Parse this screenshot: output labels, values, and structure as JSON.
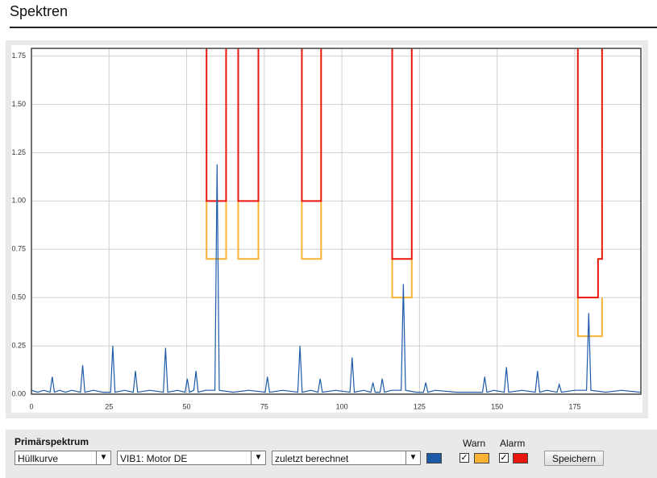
{
  "header": {
    "title": "Spektren"
  },
  "chart_data": {
    "type": "line",
    "xlim": [
      0,
      196.3
    ],
    "ylim": [
      0,
      1.79
    ],
    "xticks": [
      0,
      25,
      50,
      75,
      100,
      125,
      150,
      175
    ],
    "yticks": [
      {
        "value": 0,
        "label": "0.00"
      },
      {
        "value": 0.25,
        "label": "0.25"
      },
      {
        "value": 0.5,
        "label": "0.50"
      },
      {
        "value": 0.75,
        "label": "0.75"
      },
      {
        "value": 1,
        "label": "1.00"
      },
      {
        "value": 1.25,
        "label": "1.25"
      },
      {
        "value": 1.5,
        "label": "1.50"
      },
      {
        "value": 1.75,
        "label": "1.75"
      }
    ],
    "grid": true,
    "series": [
      {
        "color": "#1f5aa8",
        "x": [
          0,
          2,
          4,
          6,
          6.7,
          7.4,
          9,
          11,
          13,
          15.8,
          16.5,
          17.2,
          20,
          23,
          25.5,
          26.2,
          26.9,
          30,
          32.8,
          33.5,
          34.2,
          38,
          42.5,
          43.2,
          43.9,
          47,
          49.5,
          50.2,
          50.9,
          52.3,
          53,
          53.7,
          56,
          59.1,
          59.8,
          60.5,
          65,
          70,
          75.3,
          76,
          76.7,
          81,
          85.8,
          86.5,
          87.2,
          90,
          92.3,
          93,
          93.7,
          98,
          102.6,
          103.3,
          104,
          107,
          109.3,
          110,
          110.7,
          112.3,
          113,
          113.7,
          116,
          119.1,
          119.8,
          120.5,
          124,
          126.3,
          127,
          127.7,
          130,
          137,
          145.3,
          146,
          146.7,
          149,
          152.3,
          153,
          153.7,
          158,
          162.3,
          163,
          163.7,
          166,
          169.3,
          170,
          170.7,
          175,
          178.8,
          179.5,
          180.2,
          185,
          190,
          196
        ],
        "values": [
          0.02,
          0.01,
          0.02,
          0.01,
          0.09,
          0.01,
          0.02,
          0.01,
          0.02,
          0.01,
          0.15,
          0.01,
          0.02,
          0.01,
          0.01,
          0.25,
          0.01,
          0.02,
          0.01,
          0.12,
          0.01,
          0.02,
          0.01,
          0.24,
          0.01,
          0.02,
          0.01,
          0.08,
          0.01,
          0.02,
          0.12,
          0.01,
          0.02,
          0.02,
          1.19,
          0.02,
          0.01,
          0.02,
          0.01,
          0.09,
          0.01,
          0.02,
          0.01,
          0.25,
          0.01,
          0.02,
          0.01,
          0.08,
          0.01,
          0.02,
          0.01,
          0.19,
          0.01,
          0.02,
          0.01,
          0.06,
          0.01,
          0.01,
          0.08,
          0.01,
          0.02,
          0.02,
          0.57,
          0.02,
          0.01,
          0.01,
          0.06,
          0.01,
          0.02,
          0.01,
          0.01,
          0.09,
          0.01,
          0.02,
          0.01,
          0.14,
          0.01,
          0.02,
          0.01,
          0.12,
          0.01,
          0.02,
          0.01,
          0.05,
          0.01,
          0.02,
          0.02,
          0.42,
          0.02,
          0.01,
          0.02,
          0.01
        ]
      },
      {
        "name": "Warn",
        "color": "#f9b233",
        "x": [
          56.4,
          56.4,
          62.7,
          62.7,
          62.7,
          66.6,
          66.6,
          73.1,
          73.1,
          73.1,
          87.1,
          87.1,
          93.3,
          93.3,
          93.3,
          116.2,
          116.2,
          122.5,
          122.5,
          122.5,
          176,
          176,
          183.8,
          183.8
        ],
        "values": [
          1,
          0.7,
          0.7,
          1,
          null,
          1,
          0.7,
          0.7,
          1,
          null,
          1,
          0.7,
          0.7,
          1,
          null,
          0.7,
          0.5,
          0.5,
          0.7,
          null,
          0.5,
          0.3,
          0.3,
          0.5
        ]
      },
      {
        "name": "Alarm",
        "color": "#e8160c",
        "x": [
          56.4,
          56.4,
          62.7,
          62.7,
          62.7,
          66.6,
          66.6,
          73.1,
          73.1,
          73.1,
          87.1,
          87.1,
          93.3,
          93.3,
          93.3,
          116.2,
          116.2,
          122.5,
          122.5,
          122.5,
          176,
          176,
          182.5,
          182.5,
          183.8,
          183.8
        ],
        "values": [
          1.79,
          1,
          1,
          1.79,
          null,
          1.79,
          1,
          1,
          1.79,
          null,
          1.79,
          1,
          1,
          1.79,
          null,
          1.79,
          0.7,
          0.7,
          1.79,
          null,
          1.79,
          0.5,
          0.5,
          0.7,
          0.7,
          1.79
        ]
      }
    ]
  },
  "controls": {
    "label": "Primärspektrum",
    "selects": [
      "Hüllkurve",
      "VIB1: Motor DE",
      "zuletzt berechnet"
    ],
    "button": "Speichern"
  }
}
